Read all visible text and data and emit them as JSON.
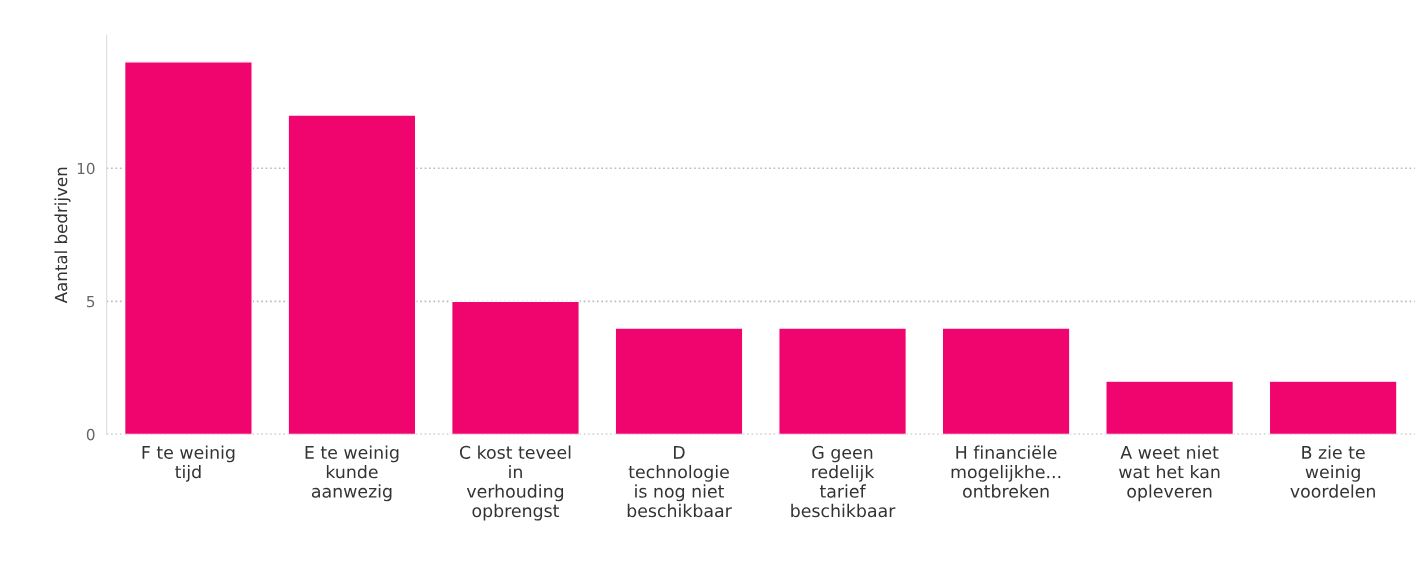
{
  "chart_data": {
    "type": "bar",
    "ylabel": "Aantal bedrijven",
    "categories": [
      "F te weinig\ntijd",
      "E te weinig\nkunde\naanwezig",
      "C kost teveel\nin\nverhouding\nopbrengst",
      "D\ntechnologie\nis nog niet\nbeschikbaar",
      "G geen\nredelijk\ntarief\nbeschikbaar",
      "H financiële\nmogelijkhe...\nontbreken",
      "A weet niet\nwat het kan\nopleveren",
      "B zie te\nweinig\nvoordelen"
    ],
    "values": [
      14,
      12,
      5,
      4,
      4,
      4,
      2,
      2
    ],
    "color": "#f0056e",
    "ylim": [
      0,
      15
    ],
    "yticks": [
      0,
      5,
      10
    ],
    "grid": "y",
    "line_style": "dotted"
  }
}
